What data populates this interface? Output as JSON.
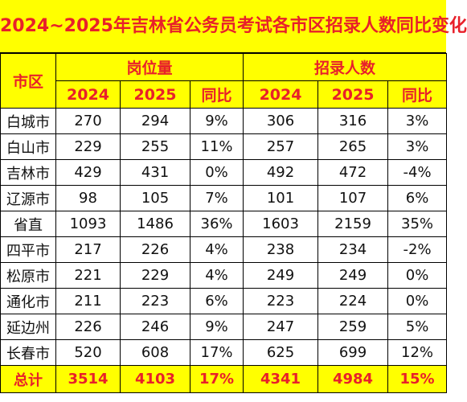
{
  "title": "2024~2025年吉林省公务员考试各市区招录人数同比变化",
  "header": {
    "region": "市区",
    "group1": "岗位量",
    "group2": "招录人数",
    "sub": [
      "2024",
      "2025",
      "同比",
      "2024",
      "2025",
      "同比"
    ]
  },
  "rows": [
    {
      "region": "白城市",
      "p2024": "270",
      "p2025": "294",
      "pyoy": "9%",
      "r2024": "306",
      "r2025": "316",
      "ryoy": "3%"
    },
    {
      "region": "白山市",
      "p2024": "229",
      "p2025": "255",
      "pyoy": "11%",
      "r2024": "257",
      "r2025": "265",
      "ryoy": "3%"
    },
    {
      "region": "吉林市",
      "p2024": "429",
      "p2025": "431",
      "pyoy": "0%",
      "r2024": "492",
      "r2025": "472",
      "ryoy": "-4%"
    },
    {
      "region": "辽源市",
      "p2024": "98",
      "p2025": "105",
      "pyoy": "7%",
      "r2024": "101",
      "r2025": "107",
      "ryoy": "6%"
    },
    {
      "region": "省直",
      "p2024": "1093",
      "p2025": "1486",
      "pyoy": "36%",
      "r2024": "1603",
      "r2025": "2159",
      "ryoy": "35%"
    },
    {
      "region": "四平市",
      "p2024": "217",
      "p2025": "226",
      "pyoy": "4%",
      "r2024": "238",
      "r2025": "234",
      "ryoy": "-2%"
    },
    {
      "region": "松原市",
      "p2024": "221",
      "p2025": "229",
      "pyoy": "4%",
      "r2024": "249",
      "r2025": "249",
      "ryoy": "0%"
    },
    {
      "region": "通化市",
      "p2024": "211",
      "p2025": "223",
      "pyoy": "6%",
      "r2024": "223",
      "r2025": "224",
      "ryoy": "0%"
    },
    {
      "region": "延边州",
      "p2024": "226",
      "p2025": "246",
      "pyoy": "9%",
      "r2024": "247",
      "r2025": "259",
      "ryoy": "5%"
    },
    {
      "region": "长春市",
      "p2024": "520",
      "p2025": "608",
      "pyoy": "17%",
      "r2024": "625",
      "r2025": "699",
      "ryoy": "12%"
    }
  ],
  "total": {
    "region": "总计",
    "p2024": "3514",
    "p2025": "4103",
    "pyoy": "17%",
    "r2024": "4341",
    "r2025": "4984",
    "ryoy": "15%"
  },
  "colors": {
    "header_bg": "#ffff00",
    "header_text": "#e8202a"
  }
}
